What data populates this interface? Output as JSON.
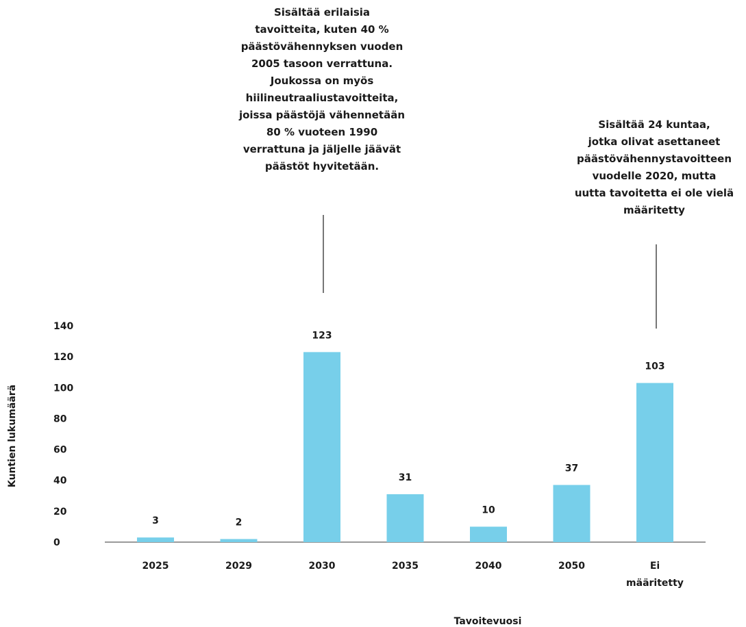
{
  "chart_data": {
    "type": "bar",
    "categories": [
      "2025",
      "2029",
      "2030",
      "2035",
      "2040",
      "2050",
      "Ei\nmääritetty"
    ],
    "values": [
      3,
      2,
      123,
      31,
      10,
      37,
      103
    ],
    "title": "",
    "xlabel": "Tavoitevuosi",
    "ylabel": "Kuntien lukumäärä",
    "ylim": [
      0,
      140
    ],
    "yticks": [
      0,
      20,
      40,
      60,
      80,
      100,
      120,
      140
    ],
    "grid": false,
    "bar_color": "#77cfea",
    "annotations": [
      {
        "category": "2030",
        "text": "Sisältää erilaisia\ntavoitteita, kuten 40 %\npäästövähennyksen vuoden\n2005 tasoon verrattuna.\nJoukossa on myös\nhiilineutraaliustavoitteita,\njoissa päästöjä vähennetään\n80 % vuoteen 1990\nverrattuna ja jäljelle jäävät\npäästöt hyvitetään."
      },
      {
        "category": "Ei\nmääritetty",
        "text": "Sisältää 24 kuntaa,\njotka olivat asettaneet\npäästövähennystavoitteen\nvuodelle 2020, mutta\nuutta tavoitetta ei ole vielä\nmääritetty"
      }
    ]
  }
}
